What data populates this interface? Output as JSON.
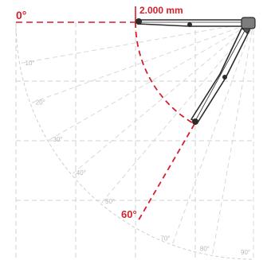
{
  "diagram": {
    "dimension_label": "2.000 mm",
    "start_angle_label": "0°",
    "tilt_angle_label": "60°",
    "scale_labels": [
      "10°",
      "20°",
      "30°",
      "40°",
      "50°",
      "70°",
      "80°",
      "90°"
    ],
    "colors": {
      "accent_red": "#d4202c",
      "grid": "#c8c8c8",
      "arm_outline": "#2b2b2b",
      "arm_fill": "#ffffff",
      "joint": "#2b2b2b"
    }
  }
}
